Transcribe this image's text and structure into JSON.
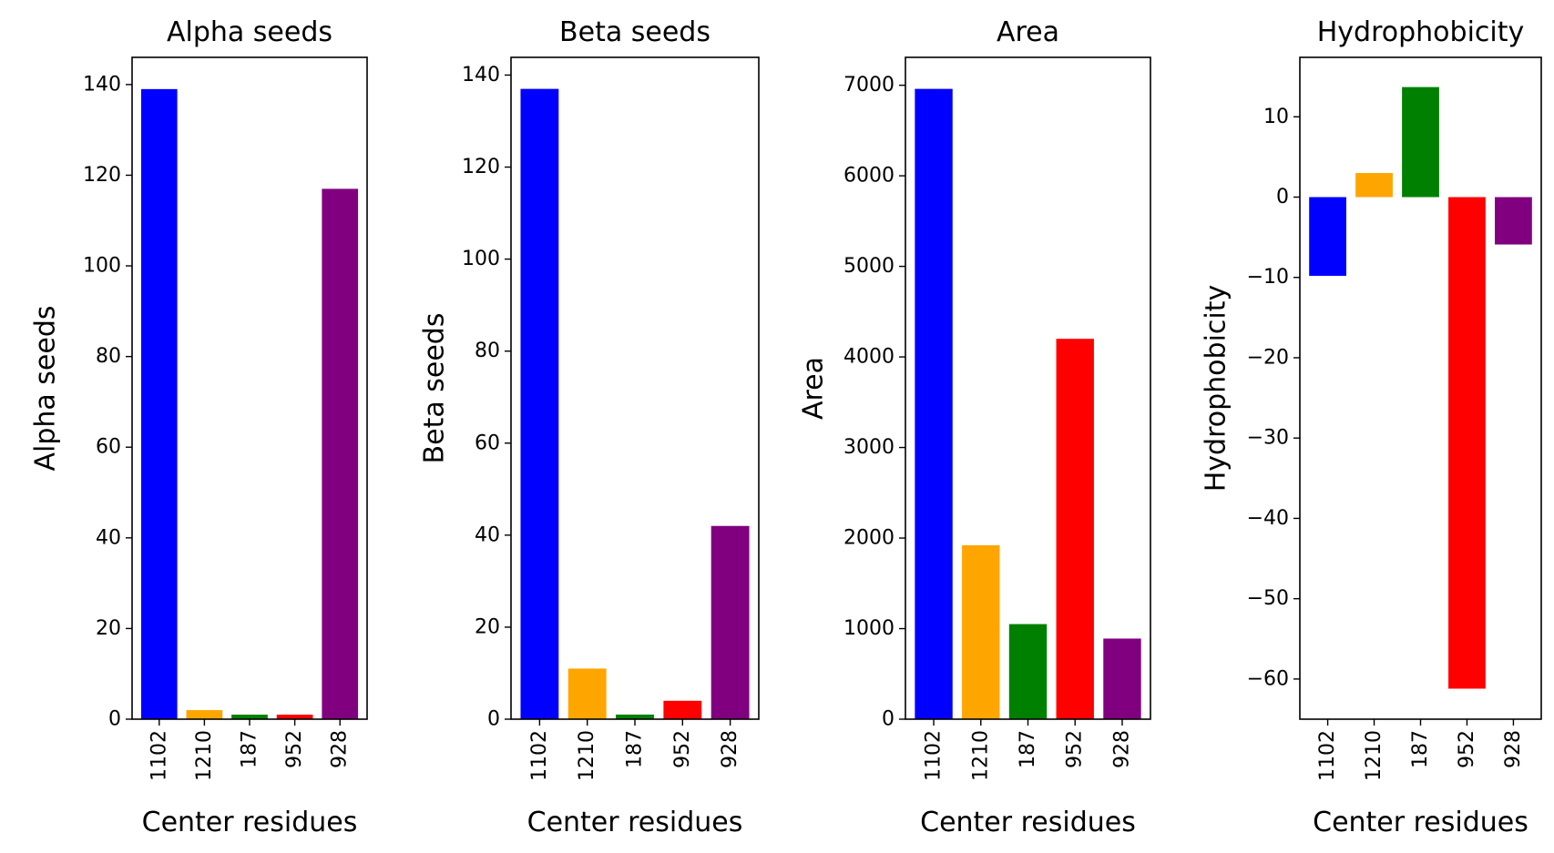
{
  "chart_data": [
    {
      "type": "bar",
      "title": "Alpha seeds",
      "xlabel": "Center residues",
      "ylabel": "Alpha seeds",
      "categories": [
        "1102",
        "1210",
        "187",
        "952",
        "928"
      ],
      "values": [
        139,
        2,
        1,
        1,
        117
      ],
      "colors": [
        "#0000ff",
        "#ffa500",
        "#008000",
        "#ff0000",
        "#800080"
      ],
      "ylim": [
        0,
        146
      ],
      "yticks": [
        0,
        20,
        40,
        60,
        80,
        100,
        120,
        140
      ],
      "ytick_labels": [
        "0",
        "20",
        "40",
        "60",
        "80",
        "100",
        "120",
        "140"
      ]
    },
    {
      "type": "bar",
      "title": "Beta seeds",
      "xlabel": "Center residues",
      "ylabel": "Beta seeds",
      "categories": [
        "1102",
        "1210",
        "187",
        "952",
        "928"
      ],
      "values": [
        137,
        11,
        1,
        4,
        42
      ],
      "colors": [
        "#0000ff",
        "#ffa500",
        "#008000",
        "#ff0000",
        "#800080"
      ],
      "ylim": [
        0,
        143.85
      ],
      "yticks": [
        0,
        20,
        40,
        60,
        80,
        100,
        120,
        140
      ],
      "ytick_labels": [
        "0",
        "20",
        "40",
        "60",
        "80",
        "100",
        "120",
        "140"
      ]
    },
    {
      "type": "bar",
      "title": "Area",
      "xlabel": "Center residues",
      "ylabel": "Area",
      "categories": [
        "1102",
        "1210",
        "187",
        "952",
        "928"
      ],
      "values": [
        6960,
        1920,
        1050,
        4200,
        890
      ],
      "colors": [
        "#0000ff",
        "#ffa500",
        "#008000",
        "#ff0000",
        "#800080"
      ],
      "ylim": [
        0,
        7308
      ],
      "yticks": [
        0,
        1000,
        2000,
        3000,
        4000,
        5000,
        6000,
        7000
      ],
      "ytick_labels": [
        "0",
        "1000",
        "2000",
        "3000",
        "4000",
        "5000",
        "6000",
        "7000"
      ]
    },
    {
      "type": "bar",
      "title": "Hydrophobicity",
      "xlabel": "Center residues",
      "ylabel": "Hydrophobicity",
      "categories": [
        "1102",
        "1210",
        "187",
        "952",
        "928"
      ],
      "values": [
        -9.8,
        3.0,
        13.7,
        -61.2,
        -5.9
      ],
      "colors": [
        "#0000ff",
        "#ffa500",
        "#008000",
        "#ff0000",
        "#800080"
      ],
      "ylim": [
        -65.0,
        17.4
      ],
      "yticks": [
        10,
        0,
        -10,
        -20,
        -30,
        -40,
        -50,
        -60
      ],
      "ytick_labels": [
        "10",
        "0",
        "−10",
        "−20",
        "−30",
        "−40",
        "−50",
        "−60"
      ]
    }
  ]
}
